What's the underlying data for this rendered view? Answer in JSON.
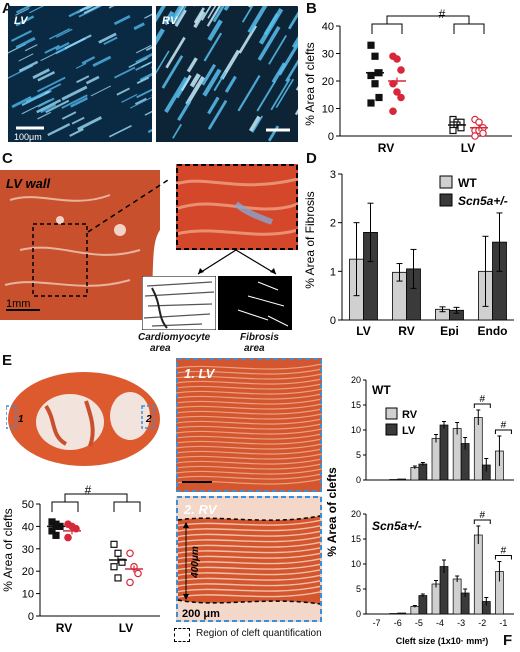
{
  "panels": {
    "A": {
      "label": "A",
      "lv_label": "LV",
      "rv_label": "RV",
      "scale": "100μm"
    },
    "B": {
      "label": "B",
      "ylabel": "% Area of clefts",
      "sig": "#",
      "yticks": [
        "0",
        "10",
        "20",
        "30",
        "40"
      ],
      "xcats": [
        "RV",
        "LV"
      ]
    },
    "C": {
      "label": "C",
      "wall_label": "LV wall",
      "scale": "1mm",
      "cm_label_1": "Cardiomyocyte",
      "cm_label_2": "area",
      "fib_label_1": "Fibrosis",
      "fib_label_2": "area"
    },
    "D": {
      "label": "D",
      "ylabel": "% Area of Fibrosis",
      "yticks": [
        "0",
        "1",
        "2",
        "3"
      ],
      "xcats": [
        "LV",
        "RV",
        "Epi",
        "Endo"
      ],
      "legend": [
        "WT",
        "Scn5a+/-"
      ]
    },
    "E": {
      "label": "E",
      "marker1": "1",
      "marker2": "2",
      "lv_title": "1. LV",
      "rv_title": "2. RV",
      "depth": "400μm",
      "scale": "200 μm",
      "region_note": "Region of cleft quantification",
      "ylabel": "% Area of clefts",
      "sig": "#",
      "yticks": [
        "0",
        "10",
        "20",
        "30",
        "40",
        "50"
      ],
      "xcats": [
        "RV",
        "LV"
      ]
    },
    "F": {
      "label": "F",
      "ylabel": "% Area of clefts",
      "wt_title": "WT",
      "scn_title": "Scn5a+/-",
      "sig": "#",
      "xlabel": "Cleft size (1x10· mm²)",
      "xticks": [
        "-7",
        "-6",
        "-5",
        "-4",
        "-3",
        "-2",
        "-1"
      ],
      "yticks": [
        "0",
        "5",
        "10",
        "15",
        "20"
      ],
      "legend": [
        "RV",
        "LV"
      ]
    }
  },
  "colors": {
    "black": "#111111",
    "red": "#d6283a",
    "light_bar": "#d0d0d0",
    "dark_bar": "#3a3a3a",
    "dashed_blue": "#3a8fd6"
  },
  "chart_data": [
    {
      "type": "scatter",
      "title": "",
      "ylabel": "% Area of clefts",
      "categories": [
        "RV",
        "LV"
      ],
      "ylim": [
        0,
        40
      ],
      "series": [
        {
          "name": "black",
          "values": [
            [
              33,
              29,
              23,
              22,
              19,
              14,
              12
            ],
            [
              6,
              5,
              5,
              4,
              4,
              3,
              2
            ]
          ],
          "mean": [
            23,
            4
          ]
        },
        {
          "name": "red",
          "values": [
            [
              29,
              28,
              24,
              19,
              16,
              14,
              9
            ],
            [
              6,
              5,
              3,
              2,
              2,
              1,
              0
            ]
          ],
          "mean": [
            20,
            3
          ]
        }
      ]
    },
    {
      "type": "bar",
      "ylabel": "% Area of Fibrosis",
      "categories": [
        "LV",
        "RV",
        "Epi",
        "Endo"
      ],
      "ylim": [
        0,
        3
      ],
      "series": [
        {
          "name": "WT",
          "values": [
            1.25,
            0.98,
            0.22,
            1.0
          ],
          "err": [
            0.75,
            0.18,
            0.05,
            0.72
          ]
        },
        {
          "name": "Scn5a+/-",
          "values": [
            1.8,
            1.05,
            0.2,
            1.6
          ],
          "err": [
            0.6,
            0.4,
            0.06,
            0.6
          ]
        }
      ]
    },
    {
      "type": "scatter",
      "ylabel": "% Area of clefts",
      "categories": [
        "RV",
        "LV"
      ],
      "ylim": [
        0,
        50
      ],
      "series": [
        {
          "name": "black",
          "values": [
            [
              42,
              41,
              40,
              38,
              36
            ],
            [
              32,
              28,
              24,
              22,
              17
            ]
          ],
          "mean": [
            40,
            25
          ]
        },
        {
          "name": "red",
          "values": [
            [
              41,
              40,
              39,
              35
            ],
            [
              28,
              22,
              19,
              15
            ]
          ],
          "mean": [
            38,
            21
          ]
        }
      ]
    },
    {
      "type": "bar",
      "title": "WT",
      "xlabel": "Cleft size (1x10· mm²)",
      "ylabel": "% Area of clefts",
      "categories": [
        "-7",
        "-6",
        "-5",
        "-4",
        "-3",
        "-2",
        "-1"
      ],
      "ylim": [
        0,
        20
      ],
      "series": [
        {
          "name": "RV",
          "values": [
            0,
            0.1,
            2.5,
            8.3,
            10.3,
            12.5,
            5.8
          ],
          "err": [
            0,
            0,
            0.3,
            0.8,
            1.2,
            1.5,
            3.0
          ]
        },
        {
          "name": "LV",
          "values": [
            0,
            0.2,
            3.2,
            11.0,
            7.3,
            3.0,
            0
          ],
          "err": [
            0,
            0,
            0.3,
            0.7,
            1.2,
            1.3,
            0
          ]
        }
      ]
    },
    {
      "type": "bar",
      "title": "Scn5a+/-",
      "xlabel": "Cleft size (1x10· mm²)",
      "ylabel": "% Area of clefts",
      "categories": [
        "-7",
        "-6",
        "-5",
        "-4",
        "-3",
        "-2",
        "-1"
      ],
      "ylim": [
        0,
        20
      ],
      "series": [
        {
          "name": "RV",
          "values": [
            0,
            0.1,
            1.5,
            6.0,
            7.0,
            15.8,
            8.5
          ],
          "err": [
            0,
            0,
            0.2,
            0.7,
            0.6,
            1.8,
            2.0
          ]
        },
        {
          "name": "LV",
          "values": [
            0,
            0.2,
            3.7,
            9.5,
            4.2,
            2.5,
            0
          ],
          "err": [
            0,
            0,
            0.3,
            1.3,
            0.8,
            0.8,
            0
          ]
        }
      ]
    }
  ]
}
